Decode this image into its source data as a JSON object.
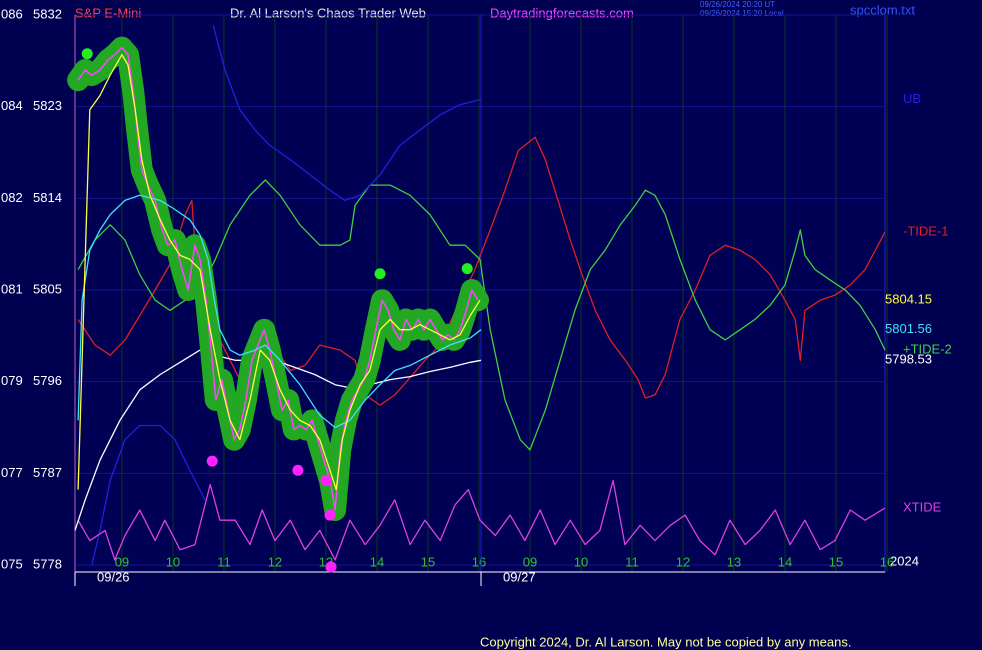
{
  "chart_data": {
    "type": "line",
    "instrument": "S&P E-Mini",
    "title": "Dr. Al Larson's Chaos Trader Web",
    "website": "Daytradingforecasts.com",
    "timestamps": [
      "09/26/2024 20:20 UT",
      "09/26/2024 15:20 Local"
    ],
    "file": "spcclom.txt",
    "copyright": "Copyright 2024, Dr. Al Larson. May not be copied by any means.",
    "ylim": [
      5778,
      5832
    ],
    "yticks": [
      5778,
      5787,
      5796,
      5805,
      5814,
      5823,
      5832
    ],
    "ytick_prefixes": [
      "075",
      "077",
      "079",
      "081",
      "082",
      "084",
      "086"
    ],
    "xlim": [
      0.08,
      15.96
    ],
    "xticks": [
      {
        "value": 1,
        "label": "09"
      },
      {
        "value": 2,
        "label": "10"
      },
      {
        "value": 3,
        "label": "11"
      },
      {
        "value": 4,
        "label": "12"
      },
      {
        "value": 5,
        "label": "13"
      },
      {
        "value": 6,
        "label": "14"
      },
      {
        "value": 7,
        "label": "15"
      },
      {
        "value": 8,
        "label": "16"
      },
      {
        "value": 9,
        "label": "09"
      },
      {
        "value": 10,
        "label": "10"
      },
      {
        "value": 11,
        "label": "11"
      },
      {
        "value": 12,
        "label": "12"
      },
      {
        "value": 13,
        "label": "13"
      },
      {
        "value": 14,
        "label": "14"
      },
      {
        "value": 15,
        "label": "15"
      },
      {
        "value": 16,
        "label": "16"
      }
    ],
    "day_markers": [
      {
        "value": 0.08,
        "label": "09/26"
      },
      {
        "value": 8.04,
        "label": "09/27"
      }
    ],
    "year_label": "2024",
    "grid": true,
    "series": [
      {
        "name": "-TIDE-1",
        "color": "#e02020",
        "x": [
          0.14,
          0.47,
          0.77,
          1.06,
          1.35,
          1.65,
          1.94,
          2.24,
          2.37,
          2.45,
          2.63,
          2.92,
          3.31,
          3.61,
          3.9,
          4.3,
          4.59,
          4.88,
          5.28,
          5.57,
          5.77,
          6.06,
          6.35,
          6.65,
          6.94,
          7.24,
          7.63,
          7.92,
          8.22,
          8.51,
          8.77,
          9.1,
          9.3,
          9.55,
          9.79,
          10.02,
          10.28,
          10.57,
          10.87,
          11.12,
          11.26,
          11.45,
          11.65,
          11.94,
          12.24,
          12.53,
          12.83,
          13.12,
          13.41,
          13.71,
          14.0,
          14.2,
          14.3,
          14.39,
          14.69,
          14.98,
          15.28,
          15.57,
          15.96
        ],
        "values": [
          5802.1,
          5799.6,
          5798.6,
          5800.1,
          5802.5,
          5805.0,
          5807.5,
          5812.4,
          5813.8,
          5808.0,
          5803.0,
          5800.1,
          5796.2,
          5799.6,
          5800.1,
          5797.1,
          5797.6,
          5799.6,
          5799.1,
          5798.1,
          5794.7,
          5793.7,
          5794.7,
          5796.4,
          5798.1,
          5799.6,
          5804.0,
          5807.0,
          5810.9,
          5814.8,
          5818.7,
          5820.0,
          5817.8,
          5813.8,
          5809.9,
          5806.5,
          5803.0,
          5800.1,
          5798.1,
          5796.2,
          5794.4,
          5794.7,
          5796.7,
          5802.1,
          5805.0,
          5808.4,
          5809.4,
          5808.9,
          5808.0,
          5806.5,
          5804.0,
          5802.1,
          5798.1,
          5803.0,
          5804.0,
          5804.5,
          5805.5,
          5807.0,
          5810.7
        ]
      },
      {
        "name": "+TIDE-2",
        "color": "#40d040",
        "x": [
          0.14,
          0.47,
          0.77,
          1.06,
          1.35,
          1.65,
          1.94,
          2.24,
          2.53,
          2.83,
          3.12,
          3.51,
          3.81,
          4.1,
          4.49,
          4.88,
          5.28,
          5.47,
          5.57,
          5.86,
          6.26,
          6.65,
          7.04,
          7.43,
          7.73,
          8.02,
          8.22,
          8.51,
          8.81,
          9.0,
          9.3,
          9.59,
          9.88,
          10.18,
          10.47,
          10.77,
          11.06,
          11.26,
          11.45,
          11.65,
          11.94,
          12.24,
          12.53,
          12.83,
          13.12,
          13.41,
          13.71,
          14.0,
          14.2,
          14.3,
          14.39,
          14.59,
          14.88,
          15.18,
          15.47,
          15.77,
          15.96
        ],
        "values": [
          5807.0,
          5809.9,
          5811.4,
          5809.9,
          5806.5,
          5804.0,
          5803.0,
          5804.0,
          5805.0,
          5808.0,
          5811.4,
          5814.3,
          5815.8,
          5814.3,
          5811.4,
          5809.4,
          5809.4,
          5809.9,
          5813.3,
          5815.3,
          5815.3,
          5814.3,
          5812.4,
          5809.4,
          5809.4,
          5808.0,
          5801.1,
          5794.2,
          5790.3,
          5789.3,
          5793.2,
          5798.1,
          5803.0,
          5807.0,
          5808.9,
          5811.4,
          5813.3,
          5814.8,
          5814.3,
          5812.4,
          5808.0,
          5804.0,
          5801.1,
          5800.1,
          5801.1,
          5802.1,
          5803.5,
          5805.5,
          5808.9,
          5810.9,
          5808.4,
          5807.0,
          5806.0,
          5805.0,
          5803.5,
          5801.1,
          5799.1
        ]
      },
      {
        "name": "UB",
        "color": "#2020dd",
        "x": [
          2.79,
          3.02,
          3.31,
          3.61,
          3.9,
          4.3,
          4.69,
          5.08,
          5.37,
          5.67,
          6.06,
          6.45,
          6.84,
          7.24,
          7.63,
          8.04
        ],
        "values": [
          5831.0,
          5826.6,
          5822.7,
          5820.7,
          5819.2,
          5817.8,
          5816.3,
          5814.8,
          5813.8,
          5814.3,
          5816.3,
          5819.2,
          5820.7,
          5822.2,
          5823.2,
          5823.7
        ]
      },
      {
        "color": "#2020dd",
        "x": [
          0.41,
          0.57,
          0.77,
          1.06,
          1.35,
          1.75,
          2.04,
          2.33,
          2.63
        ],
        "values": [
          5778.0,
          5781.4,
          5786.3,
          5790.3,
          5791.7,
          5791.7,
          5790.3,
          5787.3,
          5784.4
        ]
      },
      {
        "name": "XTIDE",
        "color": "#e040e0",
        "x": [
          0.14,
          0.37,
          0.67,
          0.86,
          1.06,
          1.35,
          1.65,
          1.84,
          2.14,
          2.43,
          2.73,
          2.92,
          3.22,
          3.51,
          3.75,
          4.0,
          4.3,
          4.59,
          4.88,
          5.18,
          5.47,
          5.77,
          6.06,
          6.35,
          6.65,
          6.94,
          7.24,
          7.53,
          7.79,
          8.02,
          8.32,
          8.61,
          8.9,
          9.2,
          9.49,
          9.79,
          10.08,
          10.37,
          10.63,
          10.86,
          11.16,
          11.45,
          11.75,
          12.04,
          12.33,
          12.63,
          12.92,
          13.22,
          13.51,
          13.81,
          14.1,
          14.39,
          14.69,
          14.98,
          15.28,
          15.57,
          15.96
        ],
        "values": [
          5782.4,
          5780.4,
          5781.4,
          5778.5,
          5780.9,
          5783.4,
          5780.4,
          5782.4,
          5779.5,
          5780.0,
          5785.9,
          5782.4,
          5782.4,
          5780.0,
          5783.4,
          5780.4,
          5782.4,
          5779.5,
          5781.4,
          5778.5,
          5782.4,
          5780.0,
          5781.9,
          5784.4,
          5780.0,
          5782.4,
          5780.4,
          5783.9,
          5785.4,
          5782.4,
          5780.9,
          5782.9,
          5780.4,
          5783.4,
          5780.0,
          5782.4,
          5780.0,
          5781.4,
          5786.3,
          5780.0,
          5781.9,
          5780.4,
          5781.9,
          5782.9,
          5780.4,
          5779.0,
          5782.4,
          5780.0,
          5781.4,
          5783.4,
          5780.0,
          5782.4,
          5779.5,
          5780.4,
          5783.4,
          5782.4,
          5783.6
        ]
      },
      {
        "color": "#ffffff",
        "last_label": "5798.53",
        "x": [
          0.08,
          0.28,
          0.57,
          0.96,
          1.35,
          1.75,
          2.14,
          2.53,
          2.83,
          3.22,
          3.61,
          4.0,
          4.39,
          4.78,
          5.18,
          5.47,
          5.86,
          6.26,
          6.65,
          7.04,
          7.43,
          7.83,
          8.04
        ],
        "values": [
          5781.4,
          5784.4,
          5788.3,
          5792.2,
          5795.2,
          5796.7,
          5797.9,
          5799.1,
          5798.6,
          5798.1,
          5798.1,
          5798.1,
          5797.4,
          5796.7,
          5795.7,
          5795.4,
          5795.7,
          5796.2,
          5796.5,
          5797.0,
          5797.4,
          5797.9,
          5798.1
        ]
      },
      {
        "color": "#ff44ff",
        "glow": "#22a822",
        "x": [
          0.14,
          0.28,
          0.41,
          0.57,
          0.73,
          0.86,
          1.0,
          1.12,
          1.22,
          1.3,
          1.39,
          1.51,
          1.65,
          1.79,
          1.9,
          2.04,
          2.18,
          2.3,
          2.43,
          2.53,
          2.65,
          2.75,
          2.84,
          2.96,
          3.08,
          3.2,
          3.31,
          3.43,
          3.55,
          3.67,
          3.79,
          3.9,
          4.02,
          4.14,
          4.26,
          4.37,
          4.49,
          4.61,
          4.73,
          4.84,
          4.96,
          5.08,
          5.18,
          5.28,
          5.39,
          5.51,
          5.63,
          5.75,
          5.86,
          5.98,
          6.1,
          6.22,
          6.33,
          6.45,
          6.57,
          6.69,
          6.81,
          6.92,
          7.04,
          7.16,
          7.28,
          7.39,
          7.51,
          7.63,
          7.75,
          7.86,
          7.98
        ],
        "values": [
          5825.6,
          5826.6,
          5826.1,
          5826.6,
          5827.6,
          5828.1,
          5828.8,
          5828.1,
          5824.6,
          5820.7,
          5816.8,
          5815.3,
          5813.8,
          5810.9,
          5809.4,
          5809.9,
          5807.0,
          5805.0,
          5809.4,
          5808.0,
          5804.0,
          5799.1,
          5794.2,
          5796.2,
          5793.2,
          5790.3,
          5791.3,
          5794.2,
          5798.1,
          5799.6,
          5801.1,
          5799.1,
          5796.2,
          5793.2,
          5794.2,
          5791.3,
          5791.7,
          5791.3,
          5792.2,
          5790.3,
          5788.3,
          5786.3,
          5783.4,
          5789.3,
          5792.2,
          5794.2,
          5795.2,
          5796.2,
          5798.1,
          5801.1,
          5804.0,
          5803.0,
          5801.1,
          5800.1,
          5802.1,
          5801.1,
          5802.1,
          5801.1,
          5802.1,
          5801.1,
          5800.1,
          5800.6,
          5800.1,
          5801.1,
          5803.0,
          5805.0,
          5804.0
        ]
      },
      {
        "color": "#40e0ff",
        "last_label": "5801.56",
        "x": [
          0.14,
          0.22,
          0.37,
          0.57,
          0.77,
          1.06,
          1.35,
          1.75,
          2.04,
          2.33,
          2.53,
          2.69,
          2.81,
          2.92,
          3.12,
          3.31,
          3.61,
          3.81,
          4.1,
          4.49,
          4.88,
          5.18,
          5.47,
          5.77,
          6.06,
          6.35,
          6.65,
          7.04,
          7.43,
          7.83,
          8.04
        ],
        "values": [
          5792.2,
          5804.0,
          5808.9,
          5810.9,
          5812.4,
          5813.8,
          5814.3,
          5813.8,
          5812.9,
          5811.9,
          5810.4,
          5808.0,
          5804.0,
          5801.1,
          5799.1,
          5798.6,
          5799.1,
          5799.6,
          5798.1,
          5795.7,
          5792.7,
          5791.5,
          5792.2,
          5794.2,
          5795.7,
          5797.1,
          5797.6,
          5798.6,
          5799.6,
          5800.3,
          5801.1
        ]
      },
      {
        "color": "#ffff40",
        "last_label": "5804.15",
        "x": [
          0.14,
          0.37,
          0.57,
          0.77,
          1.0,
          1.12,
          1.26,
          1.39,
          1.55,
          1.75,
          1.94,
          2.14,
          2.33,
          2.53,
          2.73,
          2.92,
          3.12,
          3.31,
          3.51,
          3.71,
          3.9,
          4.1,
          4.3,
          4.49,
          4.69,
          4.88,
          5.08,
          5.2,
          5.32,
          5.47,
          5.67,
          5.86,
          6.06,
          6.26,
          6.45,
          6.65,
          6.84,
          7.04,
          7.24,
          7.43,
          7.63,
          7.83,
          8.02
        ],
        "values": [
          5785.4,
          5822.7,
          5824.1,
          5826.1,
          5828.1,
          5827.1,
          5822.7,
          5817.8,
          5814.3,
          5811.9,
          5809.9,
          5808.4,
          5808.0,
          5807.0,
          5801.1,
          5796.2,
          5792.2,
          5790.3,
          5794.2,
          5799.1,
          5798.1,
          5795.2,
          5793.2,
          5792.2,
          5791.7,
          5790.3,
          5787.3,
          5785.4,
          5790.3,
          5793.2,
          5795.7,
          5797.1,
          5801.1,
          5802.1,
          5801.1,
          5801.1,
          5801.6,
          5801.1,
          5800.6,
          5800.1,
          5800.6,
          5802.5,
          5804.0
        ]
      }
    ],
    "markers": [
      {
        "color": "#22ee22",
        "x": [
          0.32,
          6.06,
          7.77
        ],
        "values": [
          5828.2,
          5806.6,
          5807.1
        ]
      },
      {
        "color": "#ff22ff",
        "x": [
          2.77,
          4.45,
          5.0,
          5.08,
          5.1
        ],
        "values": [
          5788.2,
          5787.3,
          5786.3,
          5782.9,
          5777.8
        ]
      }
    ]
  }
}
